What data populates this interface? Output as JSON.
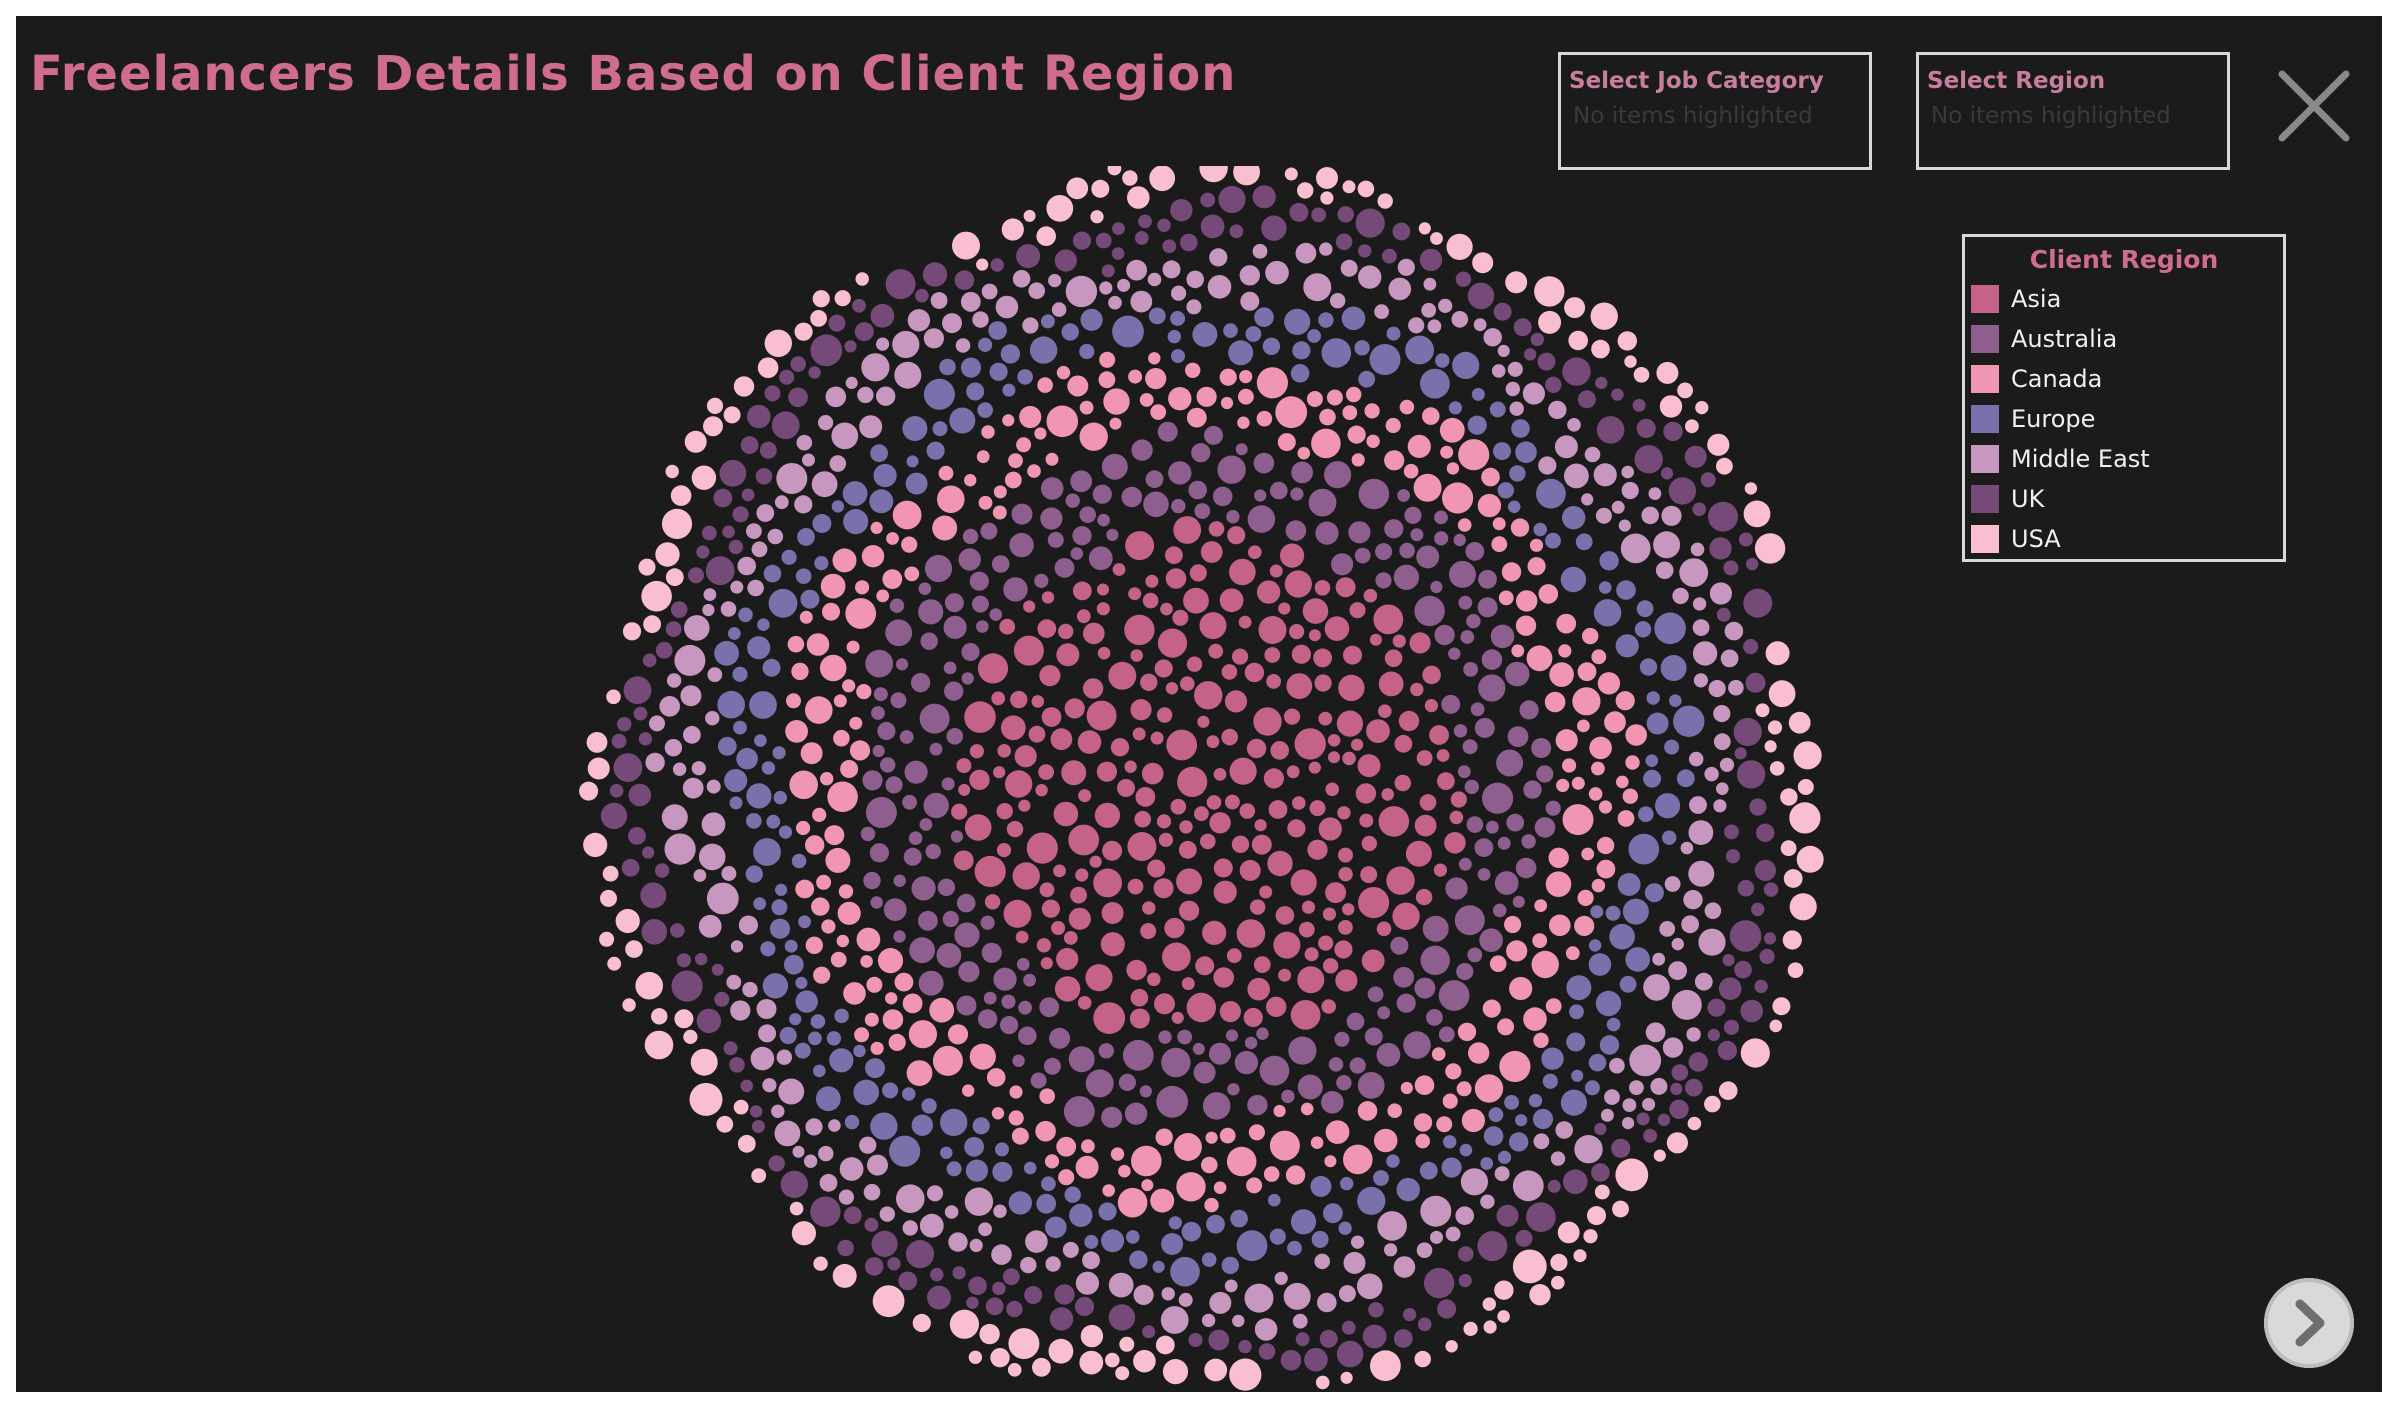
{
  "dashboard": {
    "title": "Freelancers Details Based on Client Region"
  },
  "filters": {
    "job_category": {
      "label": "Select Job Category",
      "value": "No items highlighted"
    },
    "region": {
      "label": "Select Region",
      "value": "No items highlighted"
    }
  },
  "controls": {
    "close_icon": "close-icon",
    "next_icon": "chevron-right-icon"
  },
  "legend": {
    "title": "Client Region",
    "items": [
      {
        "label": "Asia",
        "color": "#c4628a"
      },
      {
        "label": "Australia",
        "color": "#8e5e8e"
      },
      {
        "label": "Canada",
        "color": "#f095b2"
      },
      {
        "label": "Europe",
        "color": "#7a70ab"
      },
      {
        "label": "Middle East",
        "color": "#c797bf"
      },
      {
        "label": "UK",
        "color": "#764a78"
      },
      {
        "label": "USA",
        "color": "#f9bfd0"
      }
    ]
  },
  "chart_data": {
    "type": "packed-bubble",
    "color_by": "Client Region",
    "categories": [
      "Asia",
      "Australia",
      "Canada",
      "Europe",
      "Middle East",
      "UK",
      "USA"
    ],
    "arrangement": "concentric rings, Asia innermost to USA outermost"
  }
}
